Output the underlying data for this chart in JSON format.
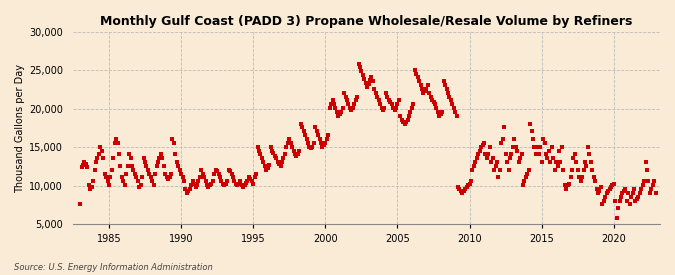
{
  "title": "Monthly Gulf Coast (PADD 3) Propane Wholesale/Resale Volume by Refiners",
  "ylabel": "Thousand Gallons per Day",
  "source": "Source: U.S. Energy Information Administration",
  "background_color": "#faebd7",
  "marker_color": "#cc0000",
  "ylim": [
    5000,
    30000
  ],
  "yticks": [
    5000,
    10000,
    15000,
    20000,
    25000,
    30000
  ],
  "xlim_start": 1982.5,
  "xlim_end": 2023.2,
  "xticks": [
    1985,
    1990,
    1995,
    2000,
    2005,
    2010,
    2015,
    2020
  ],
  "data_points": [
    [
      1983.0,
      7600
    ],
    [
      1983.1,
      12400
    ],
    [
      1983.2,
      12700
    ],
    [
      1983.3,
      13100
    ],
    [
      1983.4,
      12900
    ],
    [
      1983.5,
      12400
    ],
    [
      1983.6,
      10100
    ],
    [
      1983.7,
      9600
    ],
    [
      1983.8,
      9900
    ],
    [
      1983.9,
      10600
    ],
    [
      1984.0,
      12100
    ],
    [
      1984.1,
      13100
    ],
    [
      1984.2,
      13600
    ],
    [
      1984.3,
      14100
    ],
    [
      1984.4,
      15100
    ],
    [
      1984.5,
      14600
    ],
    [
      1984.6,
      13600
    ],
    [
      1984.7,
      11600
    ],
    [
      1984.8,
      11100
    ],
    [
      1984.9,
      10600
    ],
    [
      1985.0,
      10100
    ],
    [
      1985.1,
      11100
    ],
    [
      1985.2,
      12100
    ],
    [
      1985.3,
      13600
    ],
    [
      1985.4,
      15600
    ],
    [
      1985.5,
      16100
    ],
    [
      1985.6,
      15600
    ],
    [
      1985.7,
      14100
    ],
    [
      1985.8,
      12600
    ],
    [
      1985.9,
      11100
    ],
    [
      1986.0,
      10600
    ],
    [
      1986.1,
      10100
    ],
    [
      1986.2,
      11600
    ],
    [
      1986.3,
      12600
    ],
    [
      1986.4,
      14100
    ],
    [
      1986.5,
      13600
    ],
    [
      1986.6,
      12600
    ],
    [
      1986.7,
      12100
    ],
    [
      1986.8,
      11600
    ],
    [
      1986.9,
      11100
    ],
    [
      1987.0,
      10600
    ],
    [
      1987.1,
      9900
    ],
    [
      1987.2,
      10100
    ],
    [
      1987.3,
      11100
    ],
    [
      1987.4,
      13600
    ],
    [
      1987.5,
      13100
    ],
    [
      1987.6,
      12600
    ],
    [
      1987.7,
      12100
    ],
    [
      1987.8,
      11600
    ],
    [
      1987.9,
      11100
    ],
    [
      1988.0,
      10600
    ],
    [
      1988.1,
      10100
    ],
    [
      1988.2,
      11600
    ],
    [
      1988.3,
      12600
    ],
    [
      1988.4,
      13100
    ],
    [
      1988.5,
      13600
    ],
    [
      1988.6,
      14100
    ],
    [
      1988.7,
      13600
    ],
    [
      1988.8,
      12600
    ],
    [
      1988.9,
      11600
    ],
    [
      1989.0,
      11100
    ],
    [
      1989.1,
      10900
    ],
    [
      1989.2,
      11100
    ],
    [
      1989.3,
      11600
    ],
    [
      1989.4,
      16100
    ],
    [
      1989.5,
      15600
    ],
    [
      1989.6,
      14100
    ],
    [
      1989.7,
      13100
    ],
    [
      1989.8,
      12600
    ],
    [
      1989.9,
      12100
    ],
    [
      1990.0,
      11600
    ],
    [
      1990.1,
      11100
    ],
    [
      1990.2,
      10600
    ],
    [
      1990.3,
      9600
    ],
    [
      1990.4,
      9100
    ],
    [
      1990.5,
      9300
    ],
    [
      1990.6,
      9600
    ],
    [
      1990.7,
      10100
    ],
    [
      1990.8,
      10600
    ],
    [
      1990.9,
      10300
    ],
    [
      1991.0,
      9900
    ],
    [
      1991.1,
      10100
    ],
    [
      1991.2,
      10600
    ],
    [
      1991.3,
      11100
    ],
    [
      1991.4,
      12100
    ],
    [
      1991.5,
      11600
    ],
    [
      1991.6,
      11100
    ],
    [
      1991.7,
      10600
    ],
    [
      1991.8,
      10100
    ],
    [
      1991.9,
      9900
    ],
    [
      1992.0,
      10100
    ],
    [
      1992.1,
      10300
    ],
    [
      1992.2,
      10600
    ],
    [
      1992.3,
      11600
    ],
    [
      1992.4,
      12100
    ],
    [
      1992.5,
      11900
    ],
    [
      1992.6,
      11600
    ],
    [
      1992.7,
      11100
    ],
    [
      1992.8,
      10600
    ],
    [
      1992.9,
      10300
    ],
    [
      1993.0,
      10100
    ],
    [
      1993.1,
      10300
    ],
    [
      1993.2,
      10600
    ],
    [
      1993.3,
      12100
    ],
    [
      1993.4,
      11900
    ],
    [
      1993.5,
      11600
    ],
    [
      1993.6,
      11100
    ],
    [
      1993.7,
      10600
    ],
    [
      1993.8,
      10300
    ],
    [
      1993.9,
      10100
    ],
    [
      1994.0,
      10300
    ],
    [
      1994.1,
      10600
    ],
    [
      1994.2,
      10100
    ],
    [
      1994.3,
      9900
    ],
    [
      1994.4,
      10100
    ],
    [
      1994.5,
      10400
    ],
    [
      1994.6,
      10700
    ],
    [
      1994.7,
      11100
    ],
    [
      1994.8,
      10900
    ],
    [
      1994.9,
      10600
    ],
    [
      1995.0,
      10300
    ],
    [
      1995.1,
      11100
    ],
    [
      1995.2,
      11600
    ],
    [
      1995.3,
      15100
    ],
    [
      1995.4,
      14600
    ],
    [
      1995.5,
      14100
    ],
    [
      1995.6,
      13600
    ],
    [
      1995.7,
      13100
    ],
    [
      1995.8,
      12600
    ],
    [
      1995.9,
      12100
    ],
    [
      1996.0,
      12300
    ],
    [
      1996.1,
      12700
    ],
    [
      1996.2,
      15100
    ],
    [
      1996.3,
      14600
    ],
    [
      1996.4,
      14300
    ],
    [
      1996.5,
      13900
    ],
    [
      1996.6,
      13600
    ],
    [
      1996.7,
      13100
    ],
    [
      1996.8,
      12900
    ],
    [
      1996.9,
      12600
    ],
    [
      1997.0,
      13100
    ],
    [
      1997.1,
      13600
    ],
    [
      1997.2,
      14100
    ],
    [
      1997.3,
      15100
    ],
    [
      1997.4,
      15600
    ],
    [
      1997.5,
      16100
    ],
    [
      1997.6,
      15600
    ],
    [
      1997.7,
      15100
    ],
    [
      1997.8,
      14600
    ],
    [
      1997.9,
      14100
    ],
    [
      1998.0,
      13900
    ],
    [
      1998.1,
      14100
    ],
    [
      1998.2,
      14600
    ],
    [
      1998.3,
      18100
    ],
    [
      1998.4,
      17600
    ],
    [
      1998.5,
      17100
    ],
    [
      1998.6,
      16600
    ],
    [
      1998.7,
      16100
    ],
    [
      1998.8,
      15600
    ],
    [
      1998.9,
      15100
    ],
    [
      1999.0,
      14900
    ],
    [
      1999.1,
      15100
    ],
    [
      1999.2,
      15600
    ],
    [
      1999.3,
      17600
    ],
    [
      1999.4,
      17100
    ],
    [
      1999.5,
      16600
    ],
    [
      1999.6,
      16100
    ],
    [
      1999.7,
      15600
    ],
    [
      1999.8,
      15100
    ],
    [
      1999.9,
      15300
    ],
    [
      2000.0,
      15600
    ],
    [
      2000.1,
      16100
    ],
    [
      2000.2,
      16600
    ],
    [
      2000.3,
      20100
    ],
    [
      2000.4,
      20600
    ],
    [
      2000.5,
      21100
    ],
    [
      2000.6,
      20600
    ],
    [
      2000.7,
      20100
    ],
    [
      2000.8,
      19600
    ],
    [
      2000.9,
      19100
    ],
    [
      2001.0,
      19300
    ],
    [
      2001.1,
      19600
    ],
    [
      2001.2,
      20100
    ],
    [
      2001.3,
      22100
    ],
    [
      2001.4,
      21600
    ],
    [
      2001.5,
      21100
    ],
    [
      2001.6,
      20600
    ],
    [
      2001.7,
      20100
    ],
    [
      2001.8,
      19900
    ],
    [
      2001.9,
      20100
    ],
    [
      2002.0,
      20600
    ],
    [
      2002.1,
      21100
    ],
    [
      2002.2,
      21600
    ],
    [
      2002.3,
      25900
    ],
    [
      2002.4,
      25400
    ],
    [
      2002.5,
      24900
    ],
    [
      2002.6,
      24400
    ],
    [
      2002.7,
      23900
    ],
    [
      2002.8,
      23400
    ],
    [
      2002.9,
      22900
    ],
    [
      2003.0,
      23200
    ],
    [
      2003.1,
      23700
    ],
    [
      2003.2,
      24100
    ],
    [
      2003.3,
      23600
    ],
    [
      2003.4,
      22600
    ],
    [
      2003.5,
      22100
    ],
    [
      2003.6,
      21600
    ],
    [
      2003.7,
      21100
    ],
    [
      2003.8,
      20600
    ],
    [
      2003.9,
      20100
    ],
    [
      2004.0,
      19900
    ],
    [
      2004.1,
      20100
    ],
    [
      2004.2,
      22100
    ],
    [
      2004.3,
      21600
    ],
    [
      2004.4,
      21100
    ],
    [
      2004.5,
      20900
    ],
    [
      2004.6,
      20600
    ],
    [
      2004.7,
      20100
    ],
    [
      2004.8,
      19900
    ],
    [
      2004.9,
      20100
    ],
    [
      2005.0,
      20600
    ],
    [
      2005.1,
      21100
    ],
    [
      2005.2,
      19100
    ],
    [
      2005.3,
      18600
    ],
    [
      2005.4,
      18300
    ],
    [
      2005.5,
      18100
    ],
    [
      2005.6,
      18300
    ],
    [
      2005.7,
      18600
    ],
    [
      2005.8,
      19100
    ],
    [
      2005.9,
      19600
    ],
    [
      2006.0,
      20100
    ],
    [
      2006.1,
      20600
    ],
    [
      2006.2,
      25100
    ],
    [
      2006.3,
      24600
    ],
    [
      2006.4,
      24100
    ],
    [
      2006.5,
      23600
    ],
    [
      2006.6,
      23100
    ],
    [
      2006.7,
      22600
    ],
    [
      2006.8,
      22100
    ],
    [
      2006.9,
      22300
    ],
    [
      2007.0,
      22600
    ],
    [
      2007.1,
      23100
    ],
    [
      2007.2,
      22100
    ],
    [
      2007.3,
      21600
    ],
    [
      2007.4,
      21100
    ],
    [
      2007.5,
      20900
    ],
    [
      2007.6,
      20600
    ],
    [
      2007.7,
      20100
    ],
    [
      2007.8,
      19600
    ],
    [
      2007.9,
      19100
    ],
    [
      2008.0,
      19300
    ],
    [
      2008.1,
      19600
    ],
    [
      2008.2,
      23600
    ],
    [
      2008.3,
      23100
    ],
    [
      2008.4,
      22600
    ],
    [
      2008.5,
      22100
    ],
    [
      2008.6,
      21600
    ],
    [
      2008.7,
      21100
    ],
    [
      2008.8,
      20600
    ],
    [
      2008.9,
      20100
    ],
    [
      2009.0,
      19600
    ],
    [
      2009.1,
      19100
    ],
    [
      2009.2,
      9900
    ],
    [
      2009.3,
      9600
    ],
    [
      2009.4,
      9300
    ],
    [
      2009.5,
      9100
    ],
    [
      2009.6,
      9300
    ],
    [
      2009.7,
      9600
    ],
    [
      2009.8,
      9900
    ],
    [
      2009.9,
      10100
    ],
    [
      2010.0,
      10300
    ],
    [
      2010.1,
      10600
    ],
    [
      2010.2,
      12100
    ],
    [
      2010.3,
      12600
    ],
    [
      2010.4,
      13100
    ],
    [
      2010.5,
      13600
    ],
    [
      2010.6,
      14100
    ],
    [
      2010.7,
      14600
    ],
    [
      2010.8,
      15100
    ],
    [
      2010.9,
      15300
    ],
    [
      2011.0,
      15600
    ],
    [
      2011.1,
      14100
    ],
    [
      2011.2,
      13600
    ],
    [
      2011.3,
      14100
    ],
    [
      2011.4,
      15100
    ],
    [
      2011.5,
      13100
    ],
    [
      2011.6,
      13600
    ],
    [
      2011.7,
      12100
    ],
    [
      2011.8,
      12600
    ],
    [
      2011.9,
      13100
    ],
    [
      2012.0,
      11100
    ],
    [
      2012.1,
      12100
    ],
    [
      2012.2,
      15600
    ],
    [
      2012.3,
      16100
    ],
    [
      2012.4,
      17600
    ],
    [
      2012.5,
      14100
    ],
    [
      2012.6,
      13100
    ],
    [
      2012.7,
      12100
    ],
    [
      2012.8,
      13600
    ],
    [
      2012.9,
      14100
    ],
    [
      2013.0,
      15100
    ],
    [
      2013.1,
      16100
    ],
    [
      2013.2,
      15100
    ],
    [
      2013.3,
      14600
    ],
    [
      2013.4,
      13100
    ],
    [
      2013.5,
      13600
    ],
    [
      2013.6,
      14100
    ],
    [
      2013.7,
      10100
    ],
    [
      2013.8,
      10600
    ],
    [
      2013.9,
      11100
    ],
    [
      2014.0,
      11600
    ],
    [
      2014.1,
      12100
    ],
    [
      2014.2,
      18100
    ],
    [
      2014.3,
      17100
    ],
    [
      2014.4,
      16100
    ],
    [
      2014.5,
      15100
    ],
    [
      2014.6,
      14100
    ],
    [
      2014.7,
      15100
    ],
    [
      2014.8,
      14100
    ],
    [
      2014.9,
      15100
    ],
    [
      2015.0,
      13100
    ],
    [
      2015.1,
      16100
    ],
    [
      2015.2,
      15600
    ],
    [
      2015.3,
      14100
    ],
    [
      2015.4,
      13600
    ],
    [
      2015.5,
      14600
    ],
    [
      2015.6,
      13100
    ],
    [
      2015.7,
      15100
    ],
    [
      2015.8,
      13600
    ],
    [
      2015.9,
      12100
    ],
    [
      2016.0,
      13100
    ],
    [
      2016.1,
      12600
    ],
    [
      2016.2,
      14600
    ],
    [
      2016.3,
      13100
    ],
    [
      2016.4,
      15100
    ],
    [
      2016.5,
      12100
    ],
    [
      2016.6,
      10100
    ],
    [
      2016.7,
      9600
    ],
    [
      2016.8,
      10100
    ],
    [
      2016.9,
      10300
    ],
    [
      2017.0,
      11100
    ],
    [
      2017.1,
      12100
    ],
    [
      2017.2,
      13600
    ],
    [
      2017.3,
      14100
    ],
    [
      2017.4,
      13100
    ],
    [
      2017.5,
      12100
    ],
    [
      2017.6,
      11100
    ],
    [
      2017.7,
      10600
    ],
    [
      2017.8,
      11100
    ],
    [
      2017.9,
      12100
    ],
    [
      2018.0,
      13100
    ],
    [
      2018.1,
      12600
    ],
    [
      2018.2,
      15100
    ],
    [
      2018.3,
      14100
    ],
    [
      2018.4,
      13100
    ],
    [
      2018.5,
      12100
    ],
    [
      2018.6,
      11100
    ],
    [
      2018.7,
      10600
    ],
    [
      2018.8,
      9600
    ],
    [
      2018.9,
      9100
    ],
    [
      2019.0,
      9300
    ],
    [
      2019.1,
      9900
    ],
    [
      2019.2,
      7600
    ],
    [
      2019.3,
      8100
    ],
    [
      2019.4,
      8600
    ],
    [
      2019.5,
      9100
    ],
    [
      2019.6,
      9300
    ],
    [
      2019.7,
      9600
    ],
    [
      2019.8,
      9900
    ],
    [
      2019.9,
      10100
    ],
    [
      2020.0,
      10300
    ],
    [
      2020.1,
      8100
    ],
    [
      2020.2,
      5900
    ],
    [
      2020.3,
      7100
    ],
    [
      2020.4,
      8100
    ],
    [
      2020.5,
      8600
    ],
    [
      2020.6,
      9100
    ],
    [
      2020.7,
      9300
    ],
    [
      2020.8,
      9600
    ],
    [
      2020.9,
      8100
    ],
    [
      2021.0,
      9100
    ],
    [
      2021.1,
      7600
    ],
    [
      2021.2,
      8600
    ],
    [
      2021.3,
      9100
    ],
    [
      2021.4,
      9600
    ],
    [
      2021.5,
      8100
    ],
    [
      2021.6,
      8300
    ],
    [
      2021.7,
      8600
    ],
    [
      2021.8,
      9100
    ],
    [
      2021.9,
      9600
    ],
    [
      2022.0,
      10100
    ],
    [
      2022.1,
      10600
    ],
    [
      2022.2,
      13100
    ],
    [
      2022.3,
      12100
    ],
    [
      2022.4,
      10600
    ],
    [
      2022.5,
      9100
    ],
    [
      2022.6,
      9600
    ],
    [
      2022.7,
      10100
    ],
    [
      2022.8,
      10600
    ],
    [
      2022.9,
      9100
    ]
  ]
}
